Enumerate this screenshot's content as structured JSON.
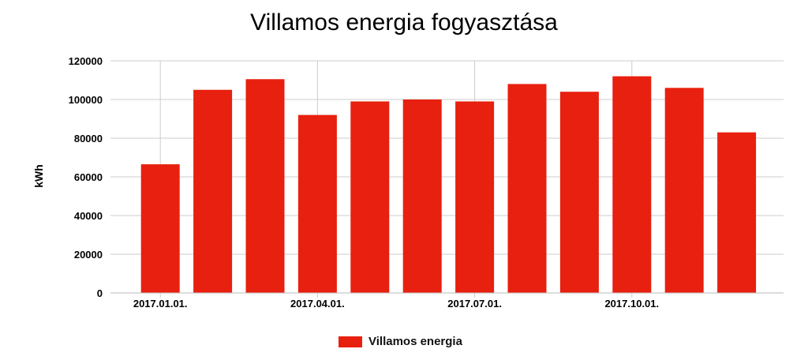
{
  "chart_data": {
    "type": "bar",
    "title": "Villamos energia fogyasztása",
    "ylabel": "kWh",
    "xlabel": "",
    "ylim": [
      0,
      120000
    ],
    "yticks": [
      0,
      20000,
      40000,
      60000,
      80000,
      100000,
      120000
    ],
    "x_tick_labels": [
      "2017.01.01.",
      "2017.04.01.",
      "2017.07.01.",
      "2017.10.01."
    ],
    "x_tick_positions": [
      0,
      3,
      6,
      9
    ],
    "categories": [
      "2017.01.",
      "2017.02.",
      "2017.03.",
      "2017.04.",
      "2017.05.",
      "2017.06.",
      "2017.07.",
      "2017.08.",
      "2017.09.",
      "2017.10.",
      "2017.11.",
      "2017.12."
    ],
    "series": [
      {
        "name": "Villamos energia",
        "color": "#e8200f",
        "values": [
          66500,
          105000,
          110500,
          92000,
          99000,
          100000,
          99000,
          108000,
          104000,
          112000,
          106000,
          83000
        ]
      }
    ],
    "grid": true,
    "legend_position": "bottom"
  }
}
